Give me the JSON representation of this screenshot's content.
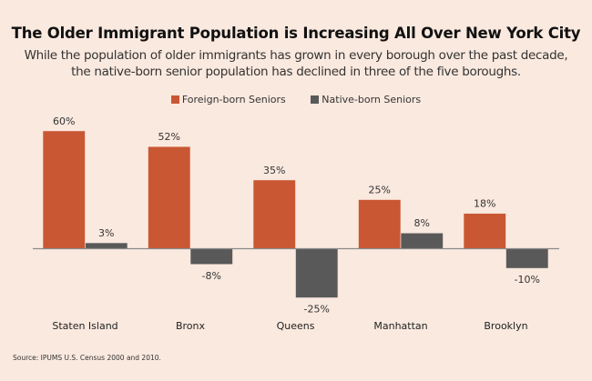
{
  "chart_data": {
    "type": "bar",
    "title": "The Older Immigrant Population is Increasing All Over New York City",
    "subtitle_lines": [
      "While the population of older immigrants has grown in every borough over the past decade,",
      "the native-born senior population has declined in three of the five boroughs."
    ],
    "categories": [
      "Staten Island",
      "Bronx",
      "Queens",
      "Manhattan",
      "Brooklyn"
    ],
    "series": [
      {
        "name": "Foreign-born Seniors",
        "color": "#c95733",
        "values": [
          60,
          52,
          35,
          25,
          18
        ],
        "labels": [
          "60%",
          "52%",
          "35%",
          "25%",
          "18%"
        ]
      },
      {
        "name": "Native-born Seniors",
        "color": "#595959",
        "values": [
          3,
          -8,
          -25,
          8,
          -10
        ],
        "labels": [
          "3%",
          "-8%",
          "-25%",
          "8%",
          "-10%"
        ]
      }
    ],
    "xlabel": "",
    "ylabel": "",
    "ylim": [
      -30,
      65
    ],
    "grid": false,
    "legend_position": "top-center",
    "source": "Source:  IPUMS U.S. Census 2000 and 2010."
  }
}
